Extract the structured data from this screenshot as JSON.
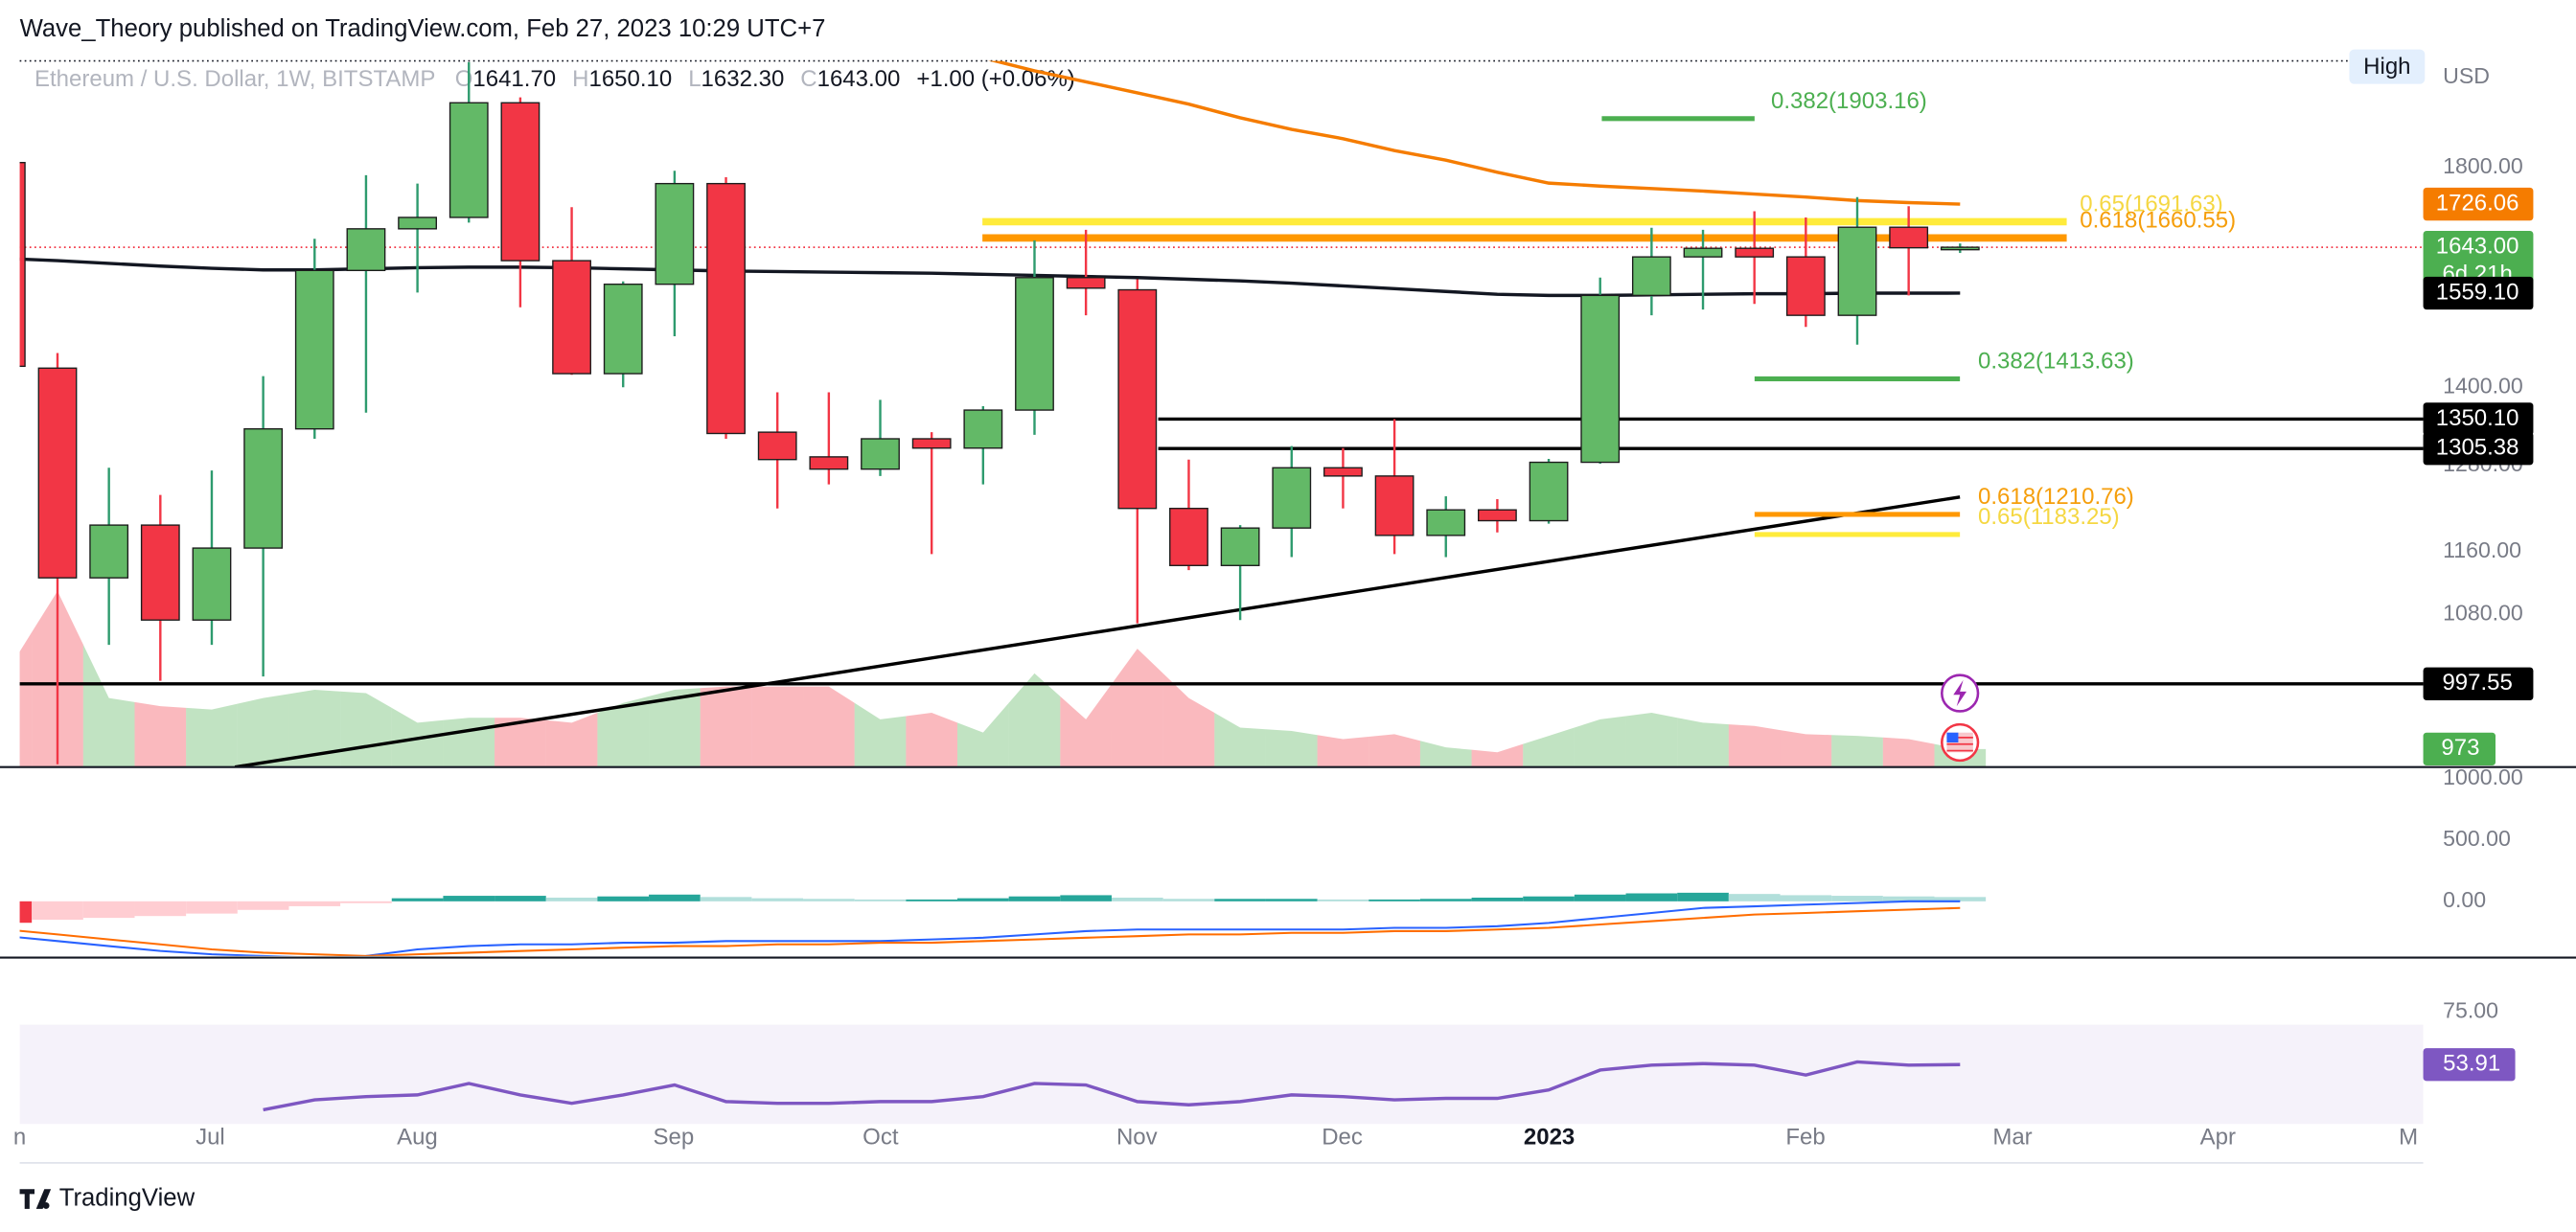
{
  "header": {
    "publisher": "Wave_Theory published on TradingView.com, Feb 27, 2023 10:29 UTC+7",
    "symbol": "Ethereum / U.S. Dollar, 1W, BITSTAMP",
    "ohlc": [
      {
        "key": "O",
        "value": "1641.70"
      },
      {
        "key": "H",
        "value": "1650.10"
      },
      {
        "key": "L",
        "value": "1632.30"
      },
      {
        "key": "C",
        "value": "1643.00"
      }
    ],
    "change": "+1.00 (+0.06%)"
  },
  "footer": {
    "brand": "TradingView"
  },
  "chart_data": {
    "type": "candlestick",
    "log_scale": true,
    "currency": "USD",
    "scale_mode": "High",
    "ylim": [
      907,
      2033
    ],
    "yticks": [
      {
        "value": 1800,
        "label": "1800.00"
      },
      {
        "value": 1400,
        "label": "1400.00"
      },
      {
        "value": 1280,
        "label": "1280.00"
      },
      {
        "value": 1160,
        "label": "1160.00"
      },
      {
        "value": 1080,
        "label": "1080.00"
      }
    ],
    "x_labels": [
      "n",
      "Jul",
      "Aug",
      "Sep",
      "Oct",
      "Nov",
      "Dec",
      "2023",
      "Feb",
      "Mar",
      "Apr",
      "M"
    ],
    "up_color": "#63b967",
    "down_color": "#f23645",
    "wick_up_color": "#2e9b6e",
    "wick_down_color": "#f23645",
    "open": [
      1810,
      1431,
      1126,
      1196,
      1073,
      1165,
      1335,
      1600,
      1678,
      1700,
      1938,
      1618,
      1422,
      1575,
      1767,
      1330,
      1293,
      1275,
      1320,
      1306,
      1364,
      1587,
      1565,
      1219,
      1142,
      1192,
      1277,
      1265,
      1182,
      1217,
      1202,
      1285,
      1555,
      1625,
      1641,
      1625,
      1520,
      1681,
      1641.7
    ],
    "high": [
      1830,
      1456,
      1277,
      1238,
      1273,
      1418,
      1659,
      1784,
      1767,
      2030,
      1950,
      1720,
      1580,
      1793,
      1780,
      1392,
      1392,
      1380,
      1330,
      1370,
      1656,
      1676,
      1584,
      1289,
      1196,
      1309,
      1306,
      1350,
      1236,
      1232,
      1290,
      1587,
      1680,
      1676,
      1712,
      1700,
      1740,
      1722,
      1650.1
    ],
    "low": [
      1420,
      910,
      1043,
      1001,
      1043,
      1006,
      1320,
      1360,
      1560,
      1690,
      1534,
      1420,
      1400,
      1484,
      1320,
      1219,
      1253,
      1265,
      1157,
      1253,
      1326,
      1520,
      1069,
      1136,
      1073,
      1153,
      1219,
      1157,
      1153,
      1186,
      1198,
      1283,
      1520,
      1530,
      1540,
      1500,
      1470,
      1555,
      1632.3
    ],
    "close": [
      1434,
      1126,
      1196,
      1073,
      1165,
      1335,
      1600,
      1678,
      1700,
      1938,
      1618,
      1422,
      1575,
      1767,
      1328,
      1289,
      1275,
      1320,
      1306,
      1364,
      1587,
      1568,
      1219,
      1142,
      1192,
      1277,
      1265,
      1182,
      1217,
      1202,
      1285,
      1555,
      1625,
      1641,
      1625,
      1520,
      1681,
      1642,
      1643
    ],
    "moving_averages": [
      {
        "color": "#f57c00",
        "values": [
          null,
          null,
          null,
          null,
          null,
          null,
          null,
          null,
          null,
          null,
          null,
          null,
          null,
          null,
          null,
          null,
          null,
          null,
          2075,
          2040,
          2010,
          1985,
          1960,
          1935,
          1905,
          1880,
          1860,
          1835,
          1815,
          1790,
          1768,
          1762,
          1757,
          1752,
          1746,
          1740,
          1733,
          1729,
          1726.06
        ]
      },
      {
        "color": "#131722",
        "values": [
          1622,
          1618,
          1613,
          1608,
          1604,
          1601,
          1601,
          1603,
          1605,
          1606,
          1606,
          1605,
          1603,
          1601,
          1599,
          1598,
          1597,
          1596,
          1595,
          1593,
          1591,
          1589,
          1587,
          1584,
          1581,
          1577,
          1572,
          1567,
          1562,
          1557,
          1555,
          1555,
          1556,
          1557,
          1558,
          1558,
          1559,
          1559,
          1559.1
        ]
      }
    ],
    "price_labels": [
      {
        "value": 1726.06,
        "label": "1726.06",
        "color": "#f57c00"
      },
      {
        "value": 1643,
        "label": "1643.00",
        "sub": "6d 21h",
        "color": "#4caf50"
      },
      {
        "value": 1559.1,
        "label": "1559.10",
        "color": "#000000"
      }
    ],
    "levels": [
      {
        "value": 1350.1,
        "label": "1350.10"
      },
      {
        "value": 1305.38,
        "label": "1305.38"
      },
      {
        "value": 997.55,
        "label": "997.55"
      }
    ],
    "trendline": [
      907,
      1235
    ],
    "fib_levels": [
      {
        "value": 1903.16,
        "label": "0.382(1903.16)",
        "color": "#4caf50",
        "text_color": "#4caf50"
      },
      {
        "value": 1691.63,
        "label": "0.65(1691.63)",
        "color": "#ffeb3b",
        "text_color": "#f5d742"
      },
      {
        "value": 1660.55,
        "label": "0.618(1660.55)",
        "color": "#ff9800",
        "text_color": "#f59e0b"
      },
      {
        "value": 1413.63,
        "label": "0.382(1413.63)",
        "color": "#4caf50",
        "text_color": "#4caf50"
      },
      {
        "value": 1210.76,
        "label": "0.618(1210.76)",
        "color": "#ff9800",
        "text_color": "#f59e0b"
      },
      {
        "value": 1183.25,
        "label": "0.65(1183.25)",
        "color": "#ffeb3b",
        "text_color": "#f5d742"
      }
    ],
    "volume": {
      "ylim": [
        0,
        38000
      ],
      "up_color": "rgba(76,175,80,0.35)",
      "down_color": "rgba(242,54,69,0.35)",
      "label_color": "#4caf50",
      "values": [
        5045,
        9470,
        3717,
        3275,
        3098,
        3717,
        4160,
        3983,
        2390,
        2655,
        2655,
        2390,
        3452,
        4160,
        4337,
        4337,
        4337,
        2567,
        2921,
        1859,
        5045,
        2567,
        6372,
        3717,
        2124,
        1947,
        1505,
        1770,
        1062,
        797,
        1682,
        2567,
        2921,
        2390,
        2213,
        1770,
        1682,
        1505,
        973
      ]
    },
    "macd": {
      "ylim": [
        -459,
        1068
      ],
      "yticks": [
        {
          "value": 1000,
          "label": "1000.00"
        },
        {
          "value": 500,
          "label": "500.00"
        },
        {
          "value": 0,
          "label": "0.00"
        }
      ],
      "histogram": [
        -175,
        -150,
        -135,
        -120,
        -100,
        -70,
        -40,
        -15,
        25,
        45,
        45,
        30,
        40,
        55,
        35,
        25,
        20,
        15,
        15,
        25,
        40,
        50,
        30,
        20,
        20,
        20,
        15,
        15,
        20,
        30,
        40,
        55,
        65,
        70,
        60,
        50,
        45,
        40,
        35
      ],
      "macd_line": {
        "color": "#2962ff",
        "values": [
          -284,
          -324,
          -365,
          -405,
          -432,
          -446,
          -459,
          -446,
          -392,
          -365,
          -351,
          -351,
          -338,
          -338,
          -324,
          -324,
          -324,
          -324,
          -311,
          -297,
          -270,
          -243,
          -230,
          -230,
          -230,
          -230,
          -230,
          -216,
          -216,
          -203,
          -176,
          -135,
          -95,
          -54,
          -41,
          -27,
          -14,
          0,
          0
        ]
      },
      "signal_line": {
        "color": "#ff6d00",
        "values": [
          -230,
          -270,
          -311,
          -351,
          -392,
          -419,
          -432,
          -446,
          -432,
          -419,
          -405,
          -392,
          -378,
          -365,
          -365,
          -351,
          -351,
          -338,
          -338,
          -324,
          -311,
          -297,
          -284,
          -270,
          -270,
          -257,
          -257,
          -243,
          -243,
          -230,
          -216,
          -189,
          -162,
          -135,
          -108,
          -95,
          -81,
          -68,
          -54
        ]
      }
    },
    "rsi": {
      "ylim": [
        14.3,
        95.7
      ],
      "band": [
        70,
        30
      ],
      "color": "#7e57c2",
      "yticks": [
        {
          "value": 75,
          "label": "75.00"
        }
      ],
      "values": [
        null,
        null,
        null,
        null,
        null,
        35.7,
        39.7,
        41,
        41.7,
        46.3,
        41.7,
        38.3,
        41.7,
        45.7,
        39,
        38.3,
        38.3,
        39,
        39,
        41,
        46.3,
        45.7,
        39,
        37.7,
        39,
        41.7,
        41,
        39.7,
        40.3,
        40.3,
        43.7,
        51.7,
        53.7,
        54.3,
        53.7,
        49.7,
        55,
        53.7,
        53.91
      ]
    }
  }
}
